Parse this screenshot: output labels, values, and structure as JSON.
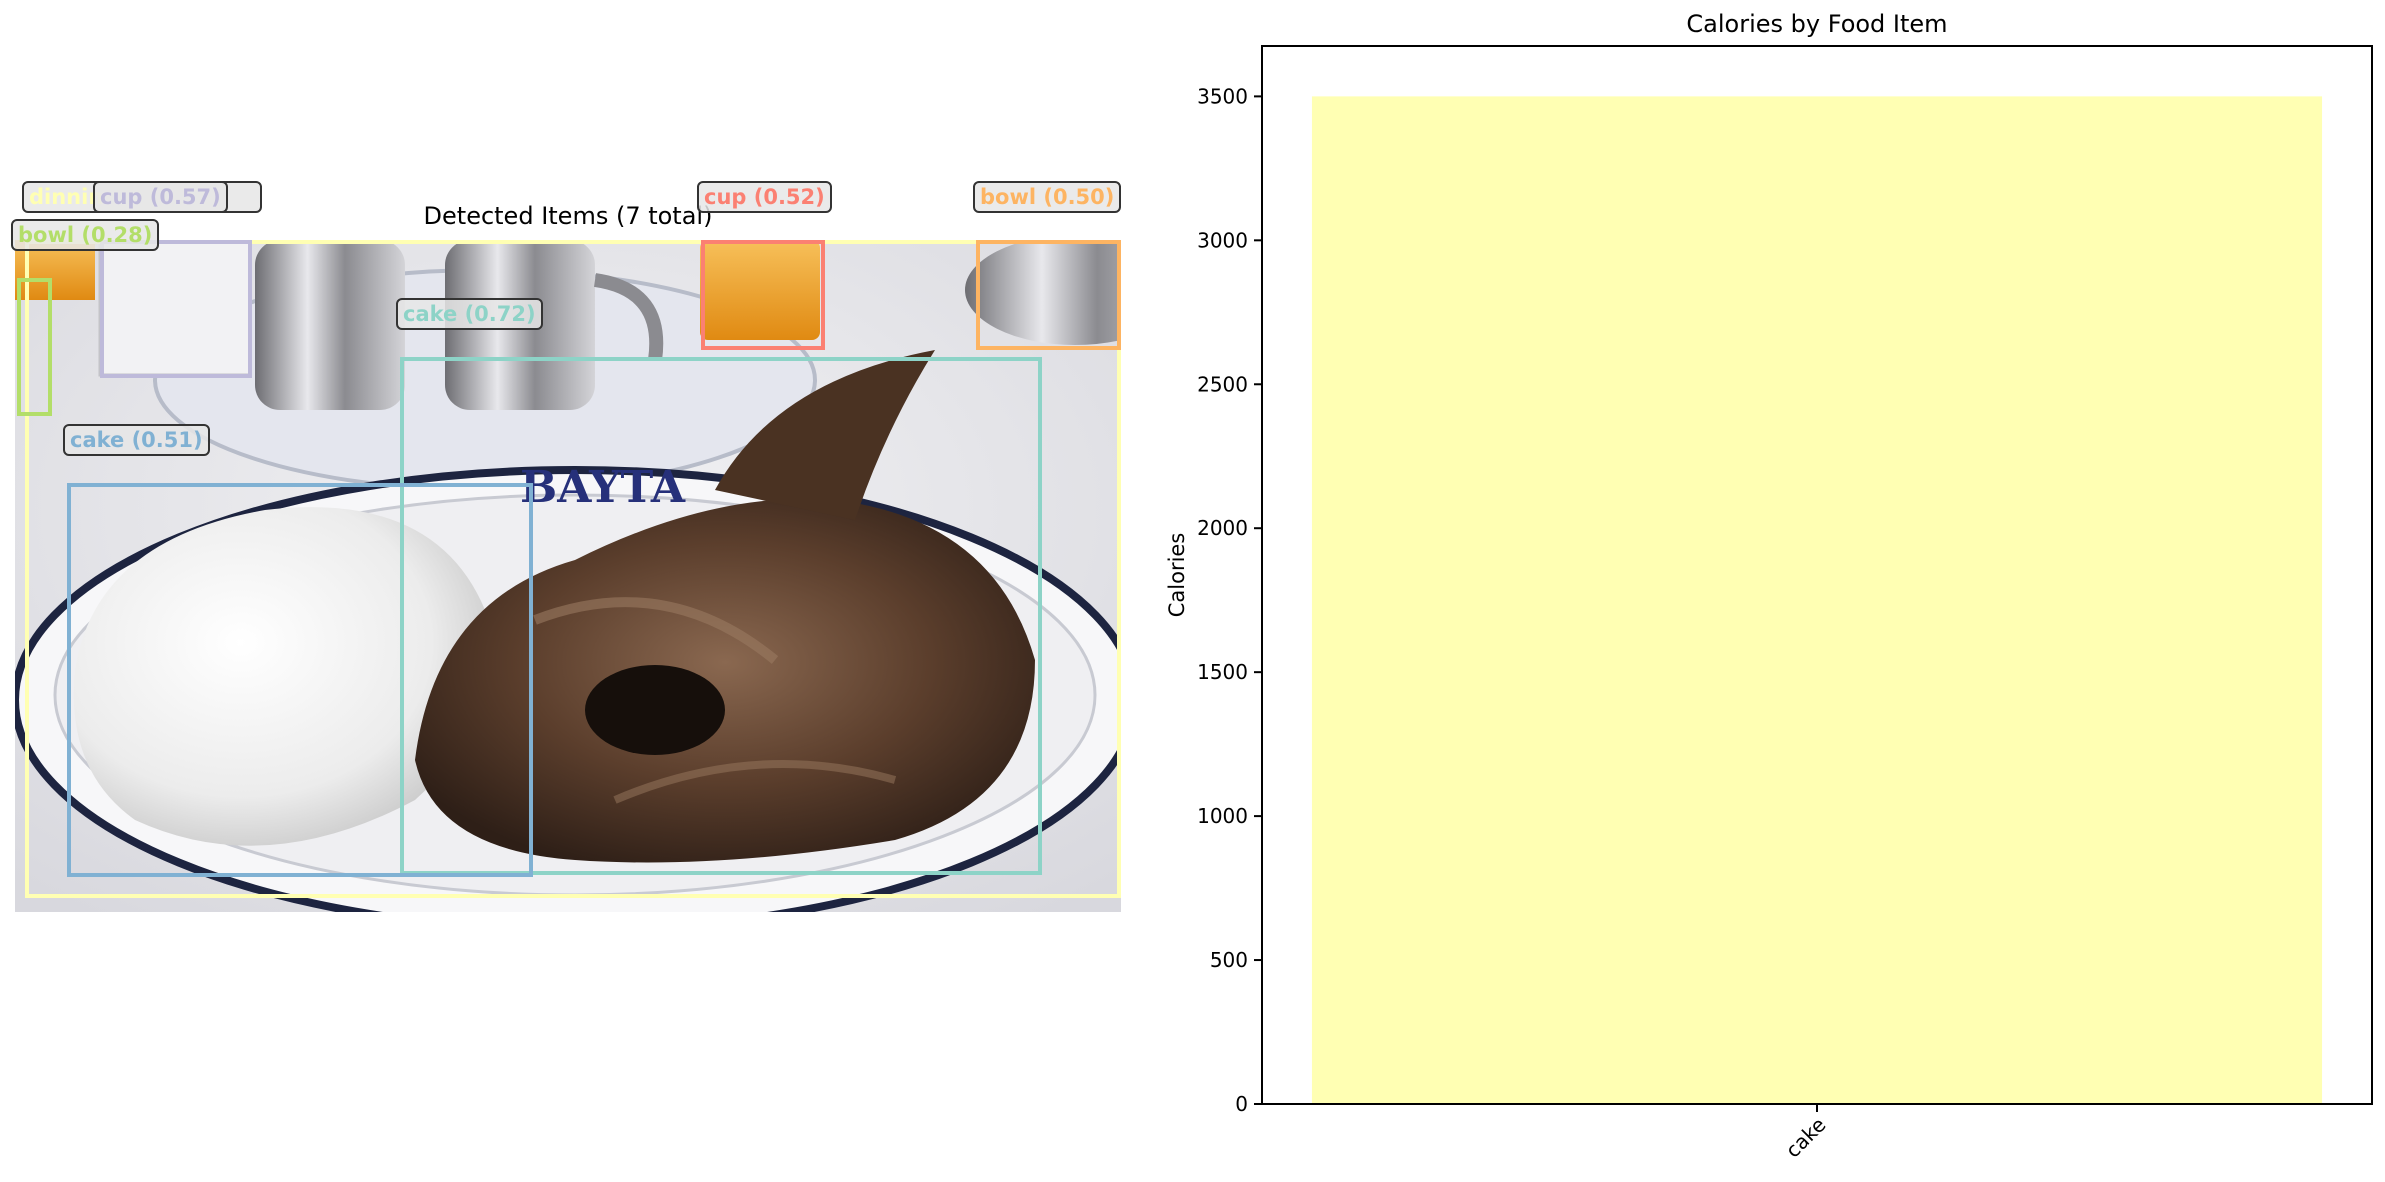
{
  "detections": {
    "title": "Detected Items (7 total)",
    "items": [
      {
        "label": "dinnin",
        "score": "",
        "color": "#ffffb3"
      },
      {
        "label": "cup",
        "score": "(0.57)",
        "color": "#bebada"
      },
      {
        "label": "bowl",
        "score": "(0.28)",
        "color": "#b3de69"
      },
      {
        "label": "cake",
        "score": "(0.72)",
        "color": "#8dd3c7"
      },
      {
        "label": "cup",
        "score": "(0.52)",
        "color": "#fb8072"
      },
      {
        "label": "bowl",
        "score": "(0.50)",
        "color": "#fdb462"
      },
      {
        "label": "cake",
        "score": "(0.51)",
        "color": "#80b1d3"
      }
    ]
  },
  "chart_data": {
    "type": "bar",
    "title": "Calories by Food Item",
    "categories": [
      "cake"
    ],
    "values": [
      3500
    ],
    "ylabel": "Calories",
    "xlabel": "",
    "ylim": [
      0,
      3675
    ],
    "yticks": [
      0,
      500,
      1000,
      1500,
      2000,
      2500,
      3000,
      3500
    ],
    "bar_color": "#ffffb3",
    "grid": false
  }
}
